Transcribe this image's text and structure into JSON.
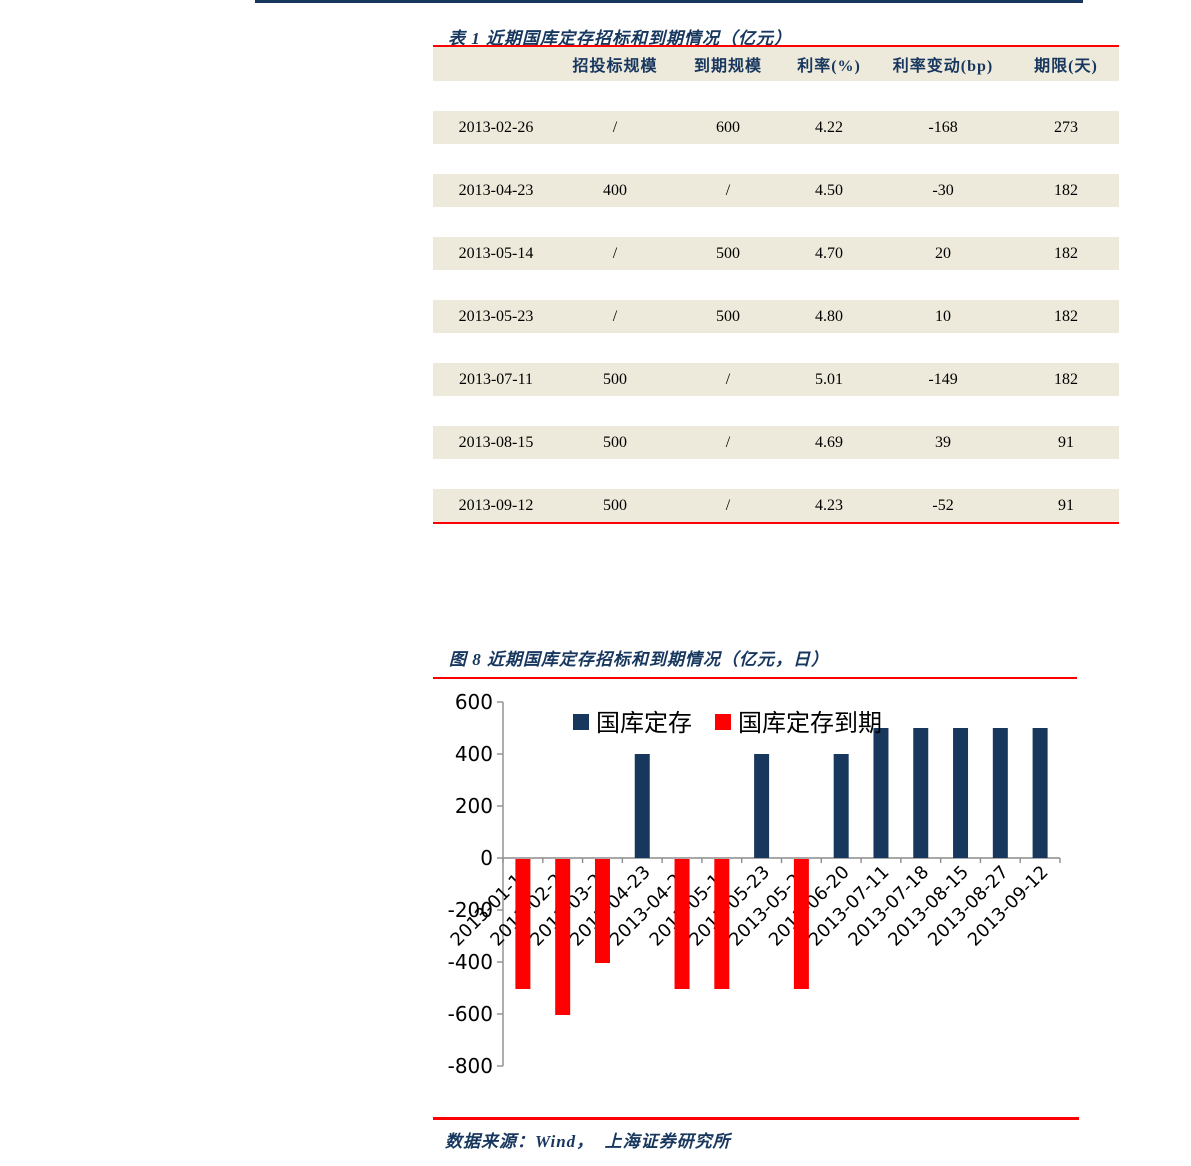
{
  "page": {
    "accent_navy": "#17375E",
    "accent_red": "#FF0000",
    "row_bg": "#EDE9DB"
  },
  "table": {
    "title": "表 1 近期国库定存招标和到期情况（亿元）",
    "headers": [
      "",
      "招投标规模",
      "到期规模",
      "利率(%)",
      "利率变动(bp)",
      "期限(天)"
    ],
    "rows": [
      [
        "2013-02-26",
        "/",
        "600",
        "4.22",
        "-168",
        "273"
      ],
      [
        "2013-04-23",
        "400",
        "/",
        "4.50",
        "-30",
        "182"
      ],
      [
        "2013-05-14",
        "/",
        "500",
        "4.70",
        "20",
        "182"
      ],
      [
        "2013-05-23",
        "/",
        "500",
        "4.80",
        "10",
        "182"
      ],
      [
        "2013-07-11",
        "500",
        "/",
        "5.01",
        "-149",
        "182"
      ],
      [
        "2013-08-15",
        "500",
        "/",
        "4.69",
        "39",
        "91"
      ],
      [
        "2013-09-12",
        "500",
        "/",
        "4.23",
        "-52",
        "91"
      ]
    ]
  },
  "chart_data": {
    "type": "bar",
    "title": "图 8 近期国库定存招标和到期情况（亿元，日）",
    "categories": [
      "2013-01-17",
      "2013-02-26",
      "2013-03-26",
      "2013-04-23",
      "2013-04-25",
      "2013-05-14",
      "2013-05-23",
      "2013-05-23",
      "2013-06-20",
      "2013-07-11",
      "2013-07-18",
      "2013-08-15",
      "2013-08-27",
      "2013-09-12"
    ],
    "series": [
      {
        "name": "国库定存",
        "color": "#17375D",
        "values": [
          null,
          null,
          null,
          400,
          null,
          null,
          400,
          null,
          400,
          500,
          500,
          500,
          500,
          500
        ]
      },
      {
        "name": "国库定存到期",
        "color": "#FF0000",
        "values": [
          -500,
          -600,
          -400,
          null,
          -500,
          -500,
          null,
          -500,
          null,
          null,
          null,
          null,
          null,
          null
        ]
      }
    ],
    "ylim": [
      -800,
      600
    ],
    "ytick_step": 200,
    "yticks": [
      600,
      400,
      200,
      0,
      -200,
      -400,
      -600,
      -800
    ],
    "grid": false,
    "legend_position": "top-center"
  },
  "footer": {
    "source": "数据来源：Wind，  上海证券研究所"
  }
}
